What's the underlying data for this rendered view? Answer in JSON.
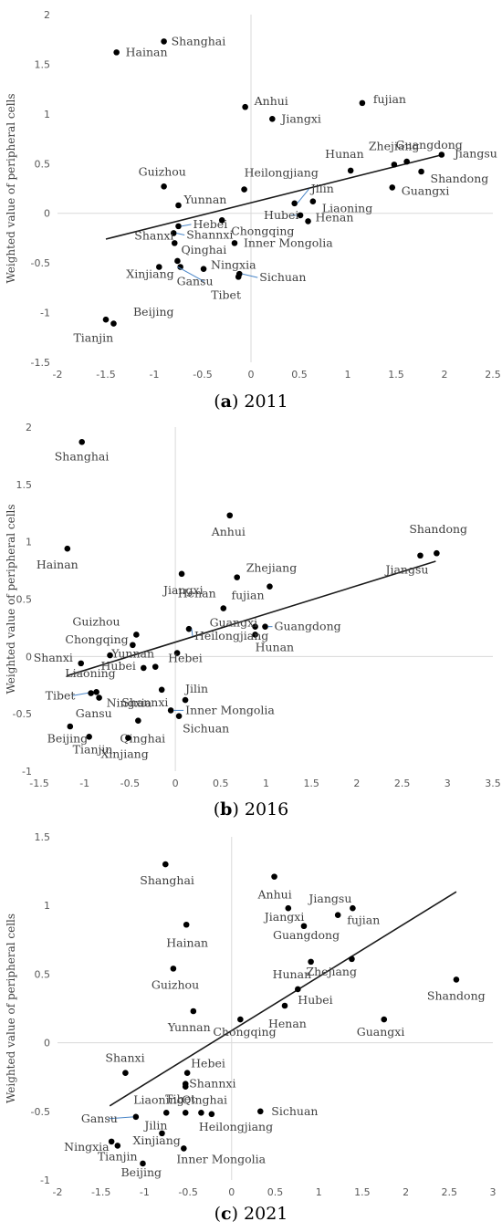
{
  "chart_data": [
    {
      "type": "scatter",
      "caption_letter": "a",
      "caption_year": "2011",
      "ylabel": "Weighted value of peripheral cells",
      "xlim": [
        -2,
        2.5
      ],
      "ylim": [
        -1.5,
        2
      ],
      "xticks": [
        "-2",
        "-1.5",
        "-1",
        "-0.5",
        "0",
        "0.5",
        "1",
        "1.5",
        "2",
        "2.5"
      ],
      "yticks": [
        "-1.5",
        "-1",
        "-0.5",
        "0",
        "0.5",
        "1",
        "1.5",
        "2"
      ],
      "trendline": [
        [
          -1.5,
          -0.26
        ],
        [
          1.98,
          0.59
        ]
      ],
      "points": [
        {
          "label": "Shanghai",
          "x": -0.9,
          "y": 1.73
        },
        {
          "label": "Hainan",
          "x": -1.39,
          "y": 1.62
        },
        {
          "label": "Anhui",
          "x": -0.06,
          "y": 1.07
        },
        {
          "label": "fujian",
          "x": 1.15,
          "y": 1.11
        },
        {
          "label": "Jiangxi",
          "x": 0.22,
          "y": 0.95
        },
        {
          "label": "Guangdong",
          "x": 1.61,
          "y": 0.52
        },
        {
          "label": "Jiangsu",
          "x": 1.97,
          "y": 0.59
        },
        {
          "label": "Zhejiang",
          "x": 1.48,
          "y": 0.49
        },
        {
          "label": "Hunan",
          "x": 1.03,
          "y": 0.43
        },
        {
          "label": "Shandong",
          "x": 1.76,
          "y": 0.42
        },
        {
          "label": "Guangxi",
          "x": 1.46,
          "y": 0.26
        },
        {
          "label": "Guizhou",
          "x": -0.9,
          "y": 0.27
        },
        {
          "label": "Heilongjiang",
          "x": -0.07,
          "y": 0.24
        },
        {
          "label": "Yunnan",
          "x": -0.75,
          "y": 0.08
        },
        {
          "label": "Jilin",
          "x": 0.45,
          "y": 0.1
        },
        {
          "label": "Hubei",
          "x": 0.51,
          "y": -0.02
        },
        {
          "label": "Henan",
          "x": 0.59,
          "y": -0.08
        },
        {
          "label": "Liaoning",
          "x": 0.64,
          "y": 0.12
        },
        {
          "label": "Hebei",
          "x": -0.75,
          "y": -0.13
        },
        {
          "label": "Chongqing",
          "x": -0.3,
          "y": -0.07
        },
        {
          "label": "Shannxi",
          "x": -0.8,
          "y": -0.2
        },
        {
          "label": "Inner Mongolia",
          "x": -0.17,
          "y": -0.3
        },
        {
          "label": "Shanxi",
          "x": -0.79,
          "y": -0.3
        },
        {
          "label": "Qinghai",
          "x": -0.76,
          "y": -0.48
        },
        {
          "label": "Xinjiang",
          "x": -0.95,
          "y": -0.54
        },
        {
          "label": "Ningxia",
          "x": -0.49,
          "y": -0.56
        },
        {
          "label": "Gansu",
          "x": -0.73,
          "y": -0.54
        },
        {
          "label": "Tibet",
          "x": -0.13,
          "y": -0.64
        },
        {
          "label": "Sichuan",
          "x": -0.12,
          "y": -0.61
        },
        {
          "label": "Beijing",
          "x": -1.5,
          "y": -1.07
        },
        {
          "label": "Tianjin",
          "x": -1.42,
          "y": -1.11
        }
      ]
    },
    {
      "type": "scatter",
      "caption_letter": "b",
      "caption_year": "2016",
      "ylabel": "Weighted value of peripheral cells",
      "xlim": [
        -1.5,
        3.5
      ],
      "ylim": [
        -1,
        2
      ],
      "xticks": [
        "-1.5",
        "-1",
        "-0.5",
        "0",
        "0.5",
        "1",
        "1.5",
        "2",
        "2.5",
        "3",
        "3.5"
      ],
      "yticks": [
        "-1",
        "-0.5",
        "0",
        "0.5",
        "1",
        "1.5",
        "2"
      ],
      "trendline": [
        [
          -1.2,
          -0.17
        ],
        [
          2.87,
          0.83
        ]
      ],
      "points": [
        {
          "label": "Shanghai",
          "x": -1.03,
          "y": 1.87
        },
        {
          "label": "Hainan",
          "x": -1.19,
          "y": 0.94
        },
        {
          "label": "Anhui",
          "x": 0.6,
          "y": 1.23
        },
        {
          "label": "Shandong",
          "x": 2.88,
          "y": 0.9
        },
        {
          "label": "Jiangsu",
          "x": 2.7,
          "y": 0.88
        },
        {
          "label": "Jiangxi",
          "x": 0.07,
          "y": 0.72
        },
        {
          "label": "Zhejiang",
          "x": 0.68,
          "y": 0.69
        },
        {
          "label": "fujian",
          "x": 1.04,
          "y": 0.61
        },
        {
          "label": "Henan",
          "x": 0.53,
          "y": 0.42
        },
        {
          "label": "Guangxi",
          "x": 0.88,
          "y": 0.26
        },
        {
          "label": "Guangdong",
          "x": 0.99,
          "y": 0.26
        },
        {
          "label": "Hunan",
          "x": 0.88,
          "y": 0.19
        },
        {
          "label": "Guizhou",
          "x": -0.43,
          "y": 0.19
        },
        {
          "label": "Chongqing",
          "x": -0.47,
          "y": 0.1
        },
        {
          "label": "Hubei",
          "x": -0.72,
          "y": 0.01
        },
        {
          "label": "Heilongjiang",
          "x": 0.15,
          "y": 0.24
        },
        {
          "label": "Hebei",
          "x": 0.02,
          "y": 0.03
        },
        {
          "label": "Shanxi",
          "x": -1.04,
          "y": -0.06
        },
        {
          "label": "Yunnan",
          "x": -0.22,
          "y": -0.09
        },
        {
          "label": "Liaoning",
          "x": -0.35,
          "y": -0.1
        },
        {
          "label": "Shannxi",
          "x": -0.15,
          "y": -0.29
        },
        {
          "label": "Jilin",
          "x": 0.11,
          "y": -0.38
        },
        {
          "label": "Tibet",
          "x": -0.87,
          "y": -0.31
        },
        {
          "label": "Ningxia",
          "x": -0.84,
          "y": -0.36
        },
        {
          "label": "Inner Mongolia",
          "x": -0.05,
          "y": -0.47
        },
        {
          "label": "Sichuan",
          "x": 0.04,
          "y": -0.52
        },
        {
          "label": "Qinghai",
          "x": -0.41,
          "y": -0.56
        },
        {
          "label": "Gansu",
          "x": -1.16,
          "y": -0.61
        },
        {
          "label": "Beijing",
          "x": -0.95,
          "y": -0.7
        },
        {
          "label": "Xinjiang",
          "x": -0.52,
          "y": -0.71
        },
        {
          "label": "Tianjin",
          "x": -0.93,
          "y": -0.32
        }
      ]
    },
    {
      "type": "scatter",
      "caption_letter": "c",
      "caption_year": "2021",
      "ylabel": "Weighted value of peripheral cells",
      "xlim": [
        -2,
        3
      ],
      "ylim": [
        -1,
        1.5
      ],
      "xticks": [
        "-2",
        "-1.5",
        "-1",
        "-0.5",
        "0",
        "0.5",
        "1",
        "1.5",
        "2",
        "2.5",
        "3"
      ],
      "yticks": [
        "-1",
        "-0.5",
        "0",
        "0.5",
        "1",
        "1.5"
      ],
      "trendline": [
        [
          -1.4,
          -0.46
        ],
        [
          2.58,
          1.1
        ]
      ],
      "points": [
        {
          "label": "Shanghai",
          "x": -0.76,
          "y": 1.3
        },
        {
          "label": "Anhui",
          "x": 0.49,
          "y": 1.21
        },
        {
          "label": "Jiangsu",
          "x": 1.39,
          "y": 0.98
        },
        {
          "label": "Jiangxi",
          "x": 0.65,
          "y": 0.98
        },
        {
          "label": "fujian",
          "x": 1.22,
          "y": 0.93
        },
        {
          "label": "Guangdong",
          "x": 0.83,
          "y": 0.85
        },
        {
          "label": "Hainan",
          "x": -0.52,
          "y": 0.86
        },
        {
          "label": "Hunan",
          "x": 0.91,
          "y": 0.59
        },
        {
          "label": "Zhejiang",
          "x": 1.38,
          "y": 0.61
        },
        {
          "label": "Guizhou",
          "x": -0.67,
          "y": 0.54
        },
        {
          "label": "Shandong",
          "x": 2.58,
          "y": 0.46
        },
        {
          "label": "Hubei",
          "x": 0.76,
          "y": 0.39
        },
        {
          "label": "Henan",
          "x": 0.61,
          "y": 0.27
        },
        {
          "label": "Yunnan",
          "x": -0.44,
          "y": 0.23
        },
        {
          "label": "Chongqing",
          "x": 0.1,
          "y": 0.17
        },
        {
          "label": "Guangxi",
          "x": 1.75,
          "y": 0.17
        },
        {
          "label": "Shanxi",
          "x": -1.22,
          "y": -0.22
        },
        {
          "label": "Hebei",
          "x": -0.51,
          "y": -0.22
        },
        {
          "label": "Shannxi",
          "x": -0.53,
          "y": -0.3
        },
        {
          "label": "Tibet",
          "x": -0.53,
          "y": -0.32
        },
        {
          "label": "Liaoning",
          "x": -0.75,
          "y": -0.51
        },
        {
          "label": "Qinghai",
          "x": -0.53,
          "y": -0.51
        },
        {
          "label": "Jilin",
          "x": -0.35,
          "y": -0.51
        },
        {
          "label": "Heilongjiang",
          "x": -0.23,
          "y": -0.52
        },
        {
          "label": "Sichuan",
          "x": 0.33,
          "y": -0.5
        },
        {
          "label": "Gansu",
          "x": -1.1,
          "y": -0.54
        },
        {
          "label": "Ningxia",
          "x": -1.38,
          "y": -0.72
        },
        {
          "label": "Tianjin",
          "x": -1.31,
          "y": -0.75
        },
        {
          "label": "Xinjiang",
          "x": -0.8,
          "y": -0.66
        },
        {
          "label": "Inner Mongolia",
          "x": -0.55,
          "y": -0.77
        },
        {
          "label": "Beijing",
          "x": -1.02,
          "y": -0.88
        }
      ]
    }
  ]
}
